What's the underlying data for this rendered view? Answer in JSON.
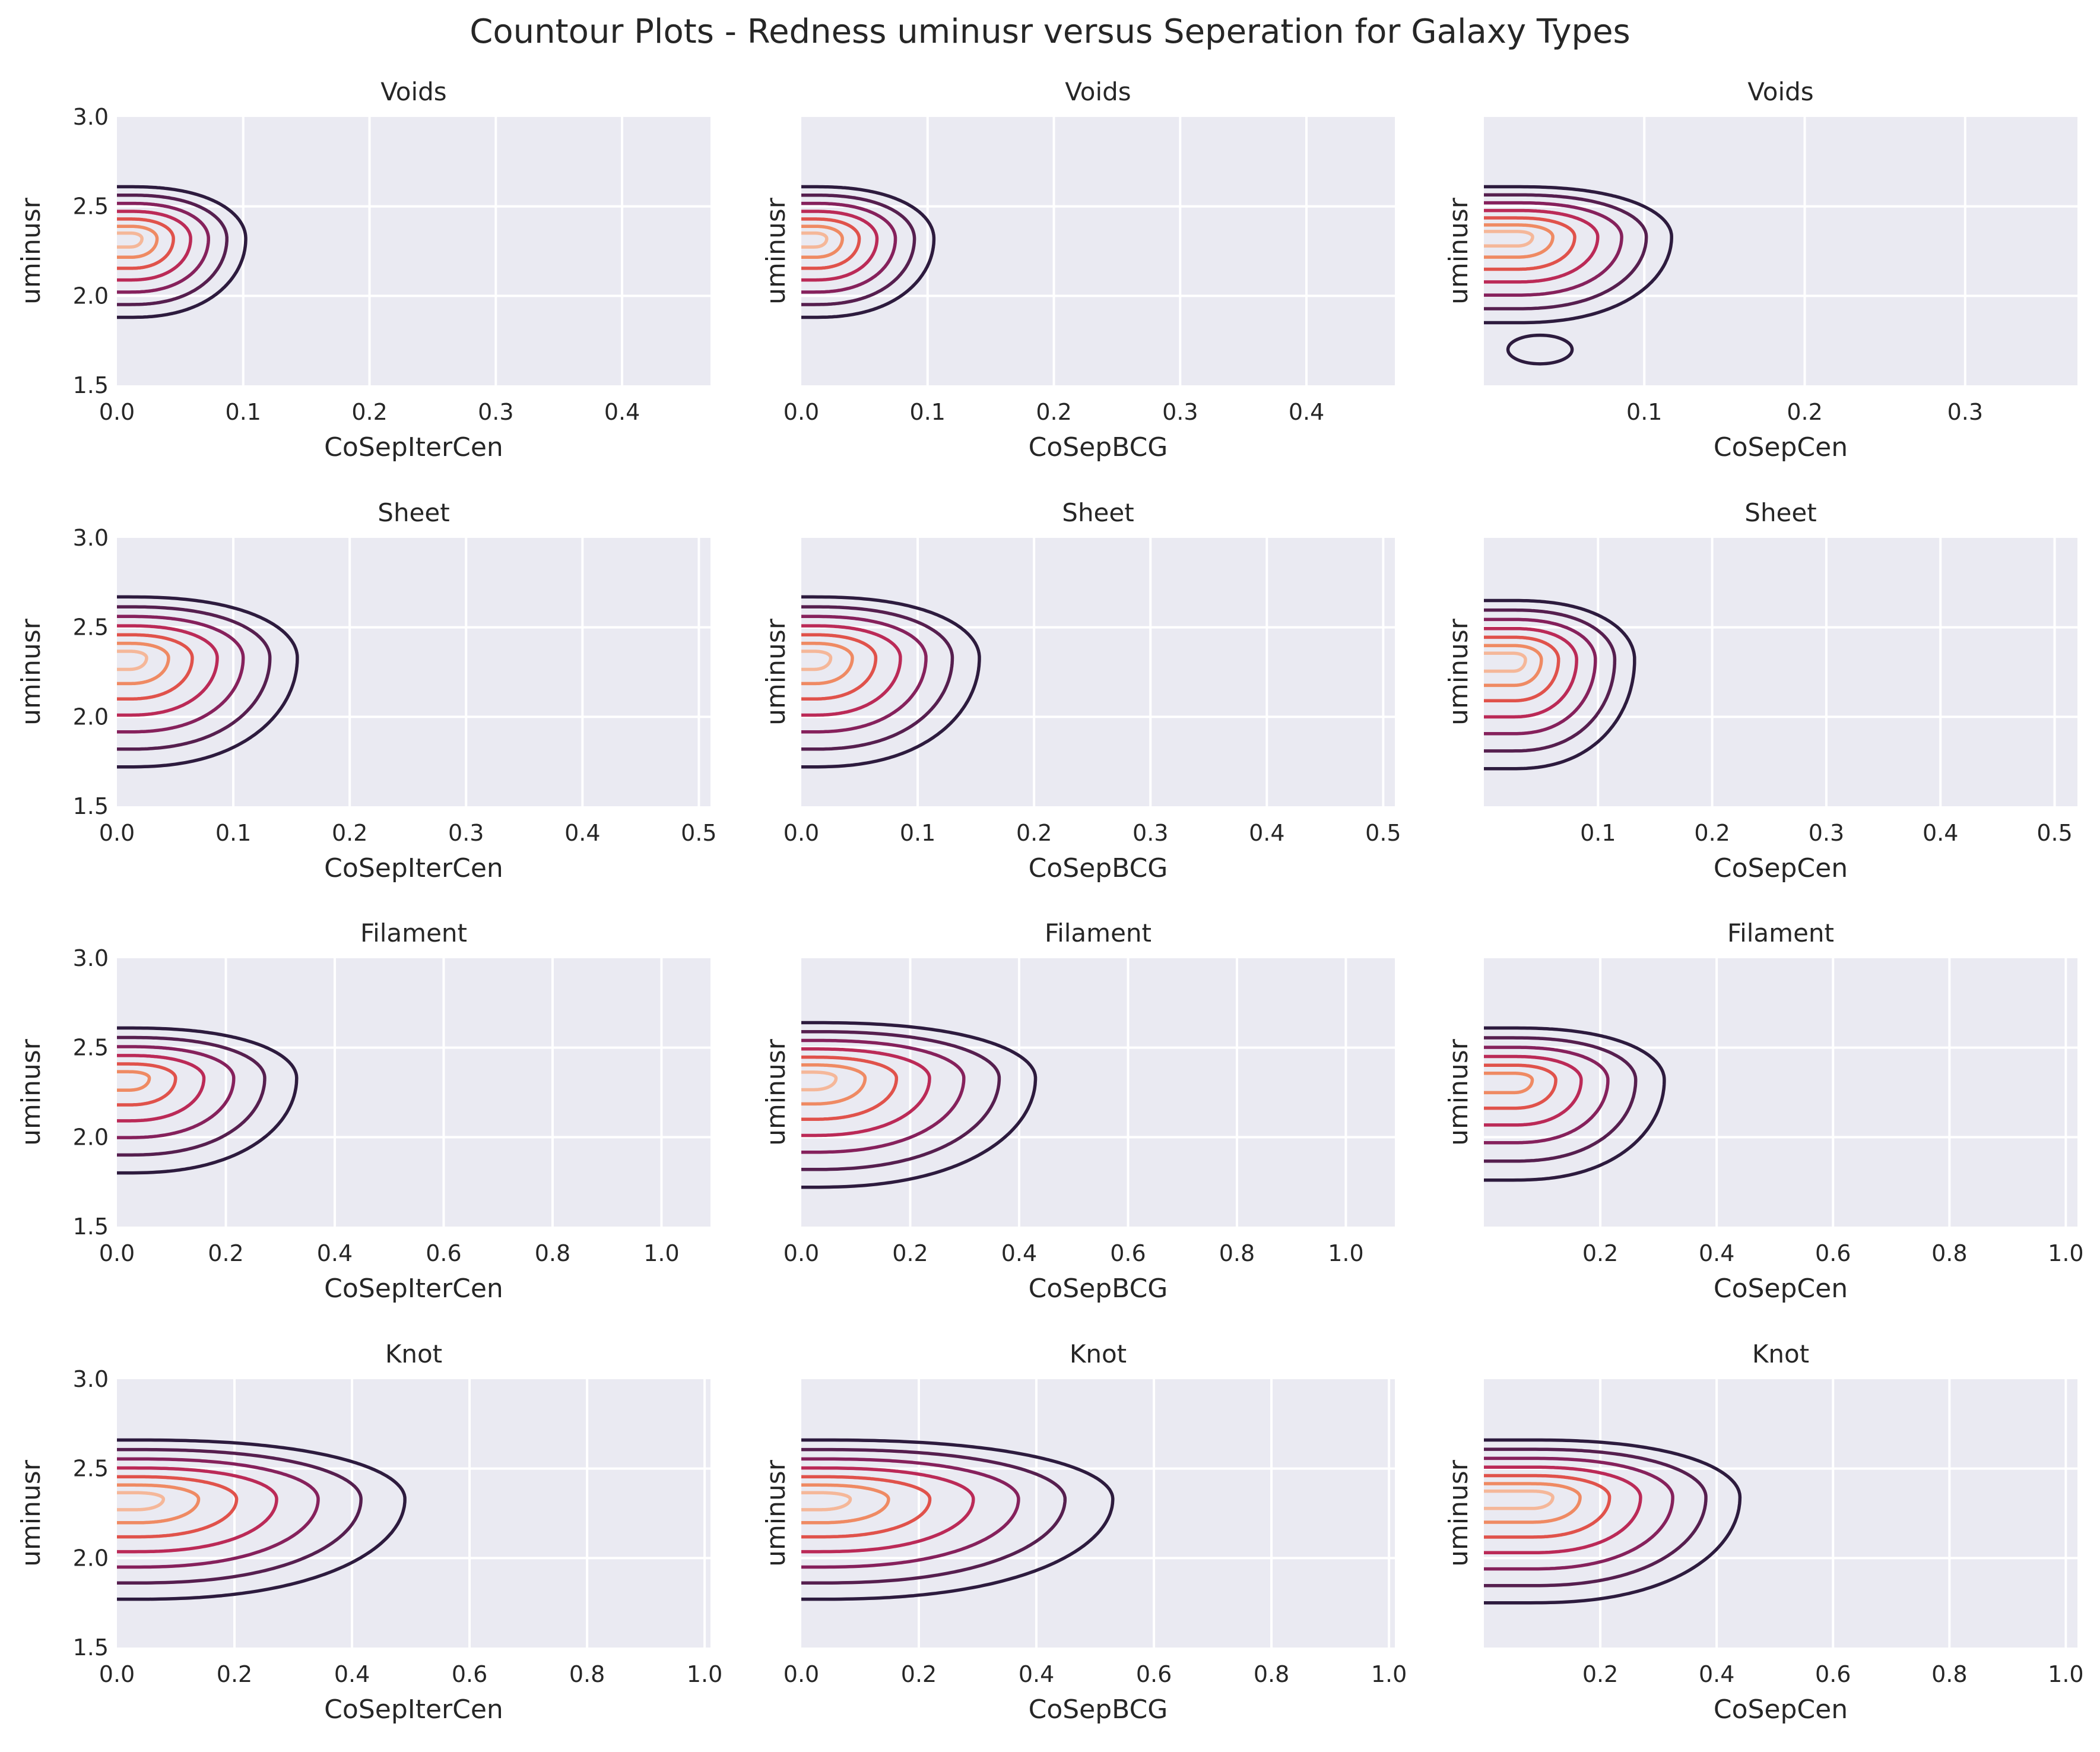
{
  "figure": {
    "title": "Countour Plots - Redness uminusr versus Seperation for Galaxy Types"
  },
  "palette": [
    "#2d1b3e",
    "#561f4f",
    "#86215c",
    "#bb2a57",
    "#e0524b",
    "#ef8a63",
    "#f5b799"
  ],
  "chart_data": [
    {
      "type": "contour",
      "title": "Voids",
      "xlabel": "CoSepIterCen",
      "ylabel": "uminusr",
      "xlim": [
        0,
        0.47
      ],
      "ylim": [
        1.5,
        3.0
      ],
      "xticks": [
        0.0,
        0.1,
        0.2,
        0.3,
        0.4
      ],
      "yticks": [
        1.5,
        2.0,
        2.5,
        3.0
      ],
      "peak": [
        0.01,
        2.32
      ],
      "sx": 0.102,
      "top": 2.61,
      "bot": 1.88,
      "levels": 7,
      "lobe": null
    },
    {
      "type": "contour",
      "title": "Voids",
      "xlabel": "CoSepBCG",
      "ylabel": "uminusr",
      "xlim": [
        0,
        0.47
      ],
      "ylim": [
        1.5,
        3.0
      ],
      "xticks": [
        0.0,
        0.1,
        0.2,
        0.3,
        0.4
      ],
      "yticks": [
        1.5,
        2.0,
        2.5,
        3.0
      ],
      "peak": [
        0.01,
        2.32
      ],
      "sx": 0.105,
      "top": 2.61,
      "bot": 1.88,
      "levels": 7,
      "lobe": null
    },
    {
      "type": "contour",
      "title": "Voids",
      "xlabel": "CoSepCen",
      "ylabel": "uminusr",
      "xlim": [
        0,
        0.37
      ],
      "ylim": [
        1.5,
        3.0
      ],
      "xticks": [
        0.1,
        0.2,
        0.3
      ],
      "yticks": [
        1.5,
        2.0,
        2.5,
        3.0
      ],
      "peak": [
        0.02,
        2.33
      ],
      "sx": 0.117,
      "top": 2.61,
      "bot": 1.85,
      "levels": 7,
      "lobe": {
        "x": 0.035,
        "y": 1.7,
        "w": 0.02,
        "h": 0.08
      }
    },
    {
      "type": "contour",
      "title": "Sheet",
      "xlabel": "CoSepIterCen",
      "ylabel": "uminusr",
      "xlim": [
        0,
        0.51
      ],
      "ylim": [
        1.5,
        3.0
      ],
      "xticks": [
        0.0,
        0.1,
        0.2,
        0.3,
        0.4,
        0.5
      ],
      "yticks": [
        1.5,
        2.0,
        2.5,
        3.0
      ],
      "peak": [
        0.01,
        2.33
      ],
      "sx": 0.155,
      "top": 2.67,
      "bot": 1.72,
      "levels": 7,
      "lobe": null
    },
    {
      "type": "contour",
      "title": "Sheet",
      "xlabel": "CoSepBCG",
      "ylabel": "uminusr",
      "xlim": [
        0,
        0.51
      ],
      "ylim": [
        1.5,
        3.0
      ],
      "xticks": [
        0.0,
        0.1,
        0.2,
        0.3,
        0.4,
        0.5
      ],
      "yticks": [
        1.5,
        2.0,
        2.5,
        3.0
      ],
      "peak": [
        0.01,
        2.33
      ],
      "sx": 0.153,
      "top": 2.67,
      "bot": 1.72,
      "levels": 7,
      "lobe": null
    },
    {
      "type": "contour",
      "title": "Sheet",
      "xlabel": "CoSepCen",
      "ylabel": "uminusr",
      "xlim": [
        0,
        0.52
      ],
      "ylim": [
        1.5,
        3.0
      ],
      "xticks": [
        0.1,
        0.2,
        0.3,
        0.4,
        0.5
      ],
      "yticks": [
        1.5,
        2.0,
        2.5,
        3.0
      ],
      "peak": [
        0.025,
        2.32
      ],
      "sx": 0.132,
      "top": 2.65,
      "bot": 1.71,
      "levels": 7,
      "lobe": null
    },
    {
      "type": "contour",
      "title": "Filament",
      "xlabel": "CoSepIterCen",
      "ylabel": "uminusr",
      "xlim": [
        0,
        1.09
      ],
      "ylim": [
        1.5,
        3.0
      ],
      "xticks": [
        0.0,
        0.2,
        0.4,
        0.6,
        0.8,
        1.0
      ],
      "yticks": [
        1.5,
        2.0,
        2.5,
        3.0
      ],
      "peak": [
        0.02,
        2.33
      ],
      "sx": 0.33,
      "top": 2.61,
      "bot": 1.8,
      "levels": 6,
      "lobe": null
    },
    {
      "type": "contour",
      "title": "Filament",
      "xlabel": "CoSepBCG",
      "ylabel": "uminusr",
      "xlim": [
        0,
        1.09
      ],
      "ylim": [
        1.5,
        3.0
      ],
      "xticks": [
        0.0,
        0.2,
        0.4,
        0.6,
        0.8,
        1.0
      ],
      "yticks": [
        1.5,
        2.0,
        2.5,
        3.0
      ],
      "peak": [
        0.02,
        2.33
      ],
      "sx": 0.43,
      "top": 2.64,
      "bot": 1.72,
      "levels": 7,
      "lobe": null
    },
    {
      "type": "contour",
      "title": "Filament",
      "xlabel": "CoSepCen",
      "ylabel": "uminusr",
      "xlim": [
        0,
        1.02
      ],
      "ylim": [
        1.5,
        3.0
      ],
      "xticks": [
        0.2,
        0.4,
        0.6,
        0.8,
        1.0
      ],
      "yticks": [
        1.5,
        2.0,
        2.5,
        3.0
      ],
      "peak": [
        0.05,
        2.32
      ],
      "sx": 0.31,
      "top": 2.61,
      "bot": 1.76,
      "levels": 6,
      "lobe": null
    },
    {
      "type": "contour",
      "title": "Knot",
      "xlabel": "CoSepIterCen",
      "ylabel": "uminusr",
      "xlim": [
        0,
        1.01
      ],
      "ylim": [
        1.5,
        3.0
      ],
      "xticks": [
        0.0,
        0.2,
        0.4,
        0.6,
        0.8,
        1.0
      ],
      "yticks": [
        1.5,
        2.0,
        2.5,
        3.0
      ],
      "peak": [
        0.03,
        2.33
      ],
      "sx": 0.49,
      "top": 2.66,
      "bot": 1.77,
      "levels": 7,
      "lobe": null
    },
    {
      "type": "contour",
      "title": "Knot",
      "xlabel": "CoSepBCG",
      "ylabel": "uminusr",
      "xlim": [
        0,
        1.01
      ],
      "ylim": [
        1.5,
        3.0
      ],
      "xticks": [
        0.0,
        0.2,
        0.4,
        0.6,
        0.8,
        1.0
      ],
      "yticks": [
        1.5,
        2.0,
        2.5,
        3.0
      ],
      "peak": [
        0.03,
        2.33
      ],
      "sx": 0.53,
      "top": 2.66,
      "bot": 1.77,
      "levels": 7,
      "lobe": null
    },
    {
      "type": "contour",
      "title": "Knot",
      "xlabel": "CoSepCen",
      "ylabel": "uminusr",
      "xlim": [
        0,
        1.02
      ],
      "ylim": [
        1.5,
        3.0
      ],
      "xticks": [
        0.2,
        0.4,
        0.6,
        0.8,
        1.0
      ],
      "yticks": [
        1.5,
        2.0,
        2.5,
        3.0
      ],
      "peak": [
        0.08,
        2.34
      ],
      "sx": 0.44,
      "top": 2.66,
      "bot": 1.75,
      "levels": 7,
      "lobe": null
    }
  ]
}
